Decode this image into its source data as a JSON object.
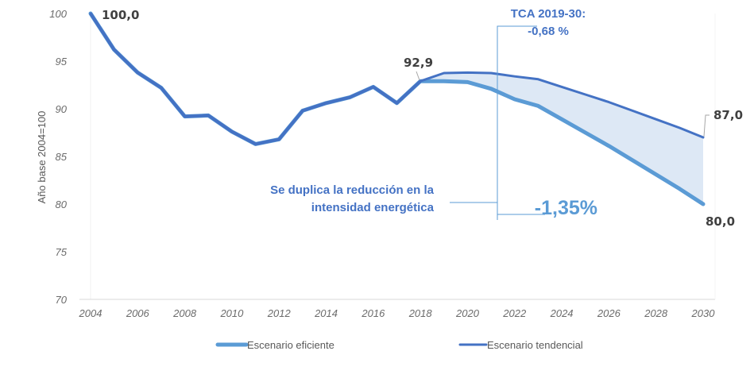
{
  "chart_data": {
    "type": "line",
    "title": "",
    "xlabel": "",
    "ylabel": "Año base 2004=100",
    "ylim": [
      70,
      100
    ],
    "xlim": [
      2004,
      2030
    ],
    "y_ticks": [
      "70",
      "75",
      "80",
      "85",
      "90",
      "95",
      "100"
    ],
    "y_tick_values": [
      70,
      75,
      80,
      85,
      90,
      95,
      100
    ],
    "x_ticks": [
      "2004",
      "2006",
      "2008",
      "2010",
      "2012",
      "2014",
      "2016",
      "2018",
      "2020",
      "2022",
      "2024",
      "2026",
      "2028",
      "2030"
    ],
    "x_tick_values": [
      2004,
      2006,
      2008,
      2010,
      2012,
      2014,
      2016,
      2018,
      2020,
      2022,
      2024,
      2026,
      2028,
      2030
    ],
    "grid": "horizontal-baseline-only",
    "legend_position": "bottom",
    "series": [
      {
        "name": "Escenario eficiente",
        "color": "#5b9bd5",
        "x": [
          2004,
          2005,
          2006,
          2007,
          2008,
          2009,
          2010,
          2011,
          2012,
          2013,
          2014,
          2015,
          2016,
          2017,
          2018,
          2019,
          2020,
          2021,
          2022,
          2023,
          2024,
          2025,
          2026,
          2027,
          2028,
          2029,
          2030
        ],
        "values": [
          100.0,
          96.2,
          93.8,
          92.2,
          89.2,
          89.3,
          87.6,
          86.3,
          86.8,
          89.8,
          90.6,
          91.2,
          92.3,
          90.6,
          92.9,
          92.9,
          92.8,
          92.1,
          91.0,
          90.3,
          88.9,
          87.5,
          86.1,
          84.6,
          83.1,
          81.6,
          80.0
        ]
      },
      {
        "name": "Escenario tendencial",
        "color": "#4472c4",
        "x": [
          2004,
          2005,
          2006,
          2007,
          2008,
          2009,
          2010,
          2011,
          2012,
          2013,
          2014,
          2015,
          2016,
          2017,
          2018,
          2019,
          2020,
          2021,
          2022,
          2023,
          2024,
          2025,
          2026,
          2027,
          2028,
          2029,
          2030
        ],
        "values": [
          100.0,
          96.2,
          93.8,
          92.2,
          89.2,
          89.3,
          87.6,
          86.3,
          86.8,
          89.8,
          90.6,
          91.2,
          92.3,
          90.6,
          92.9,
          93.75,
          93.8,
          93.75,
          93.4,
          93.1,
          92.3,
          91.5,
          90.7,
          89.8,
          88.9,
          88.0,
          87.0
        ]
      }
    ],
    "band": {
      "between": [
        "Escenario tendencial",
        "Escenario eficiente"
      ],
      "from": 2018,
      "to": 2030,
      "color": "#dde8f5"
    },
    "data_labels": [
      {
        "x": 2004,
        "y": 100.0,
        "text": "100,0"
      },
      {
        "x": 2018,
        "y": 92.9,
        "text": "92,9"
      },
      {
        "x": 2030,
        "y": 87.0,
        "text": "87,0"
      },
      {
        "x": 2030,
        "y": 80.0,
        "text": "80,0"
      }
    ],
    "annotations": {
      "tca_title": "TCA 2019-30:",
      "tca_tendencial": "-0,68 %",
      "reduction_line1": "Se duplica la reducción en la",
      "reduction_line2": "intensidad energética",
      "tca_eficiente": "-1,35%"
    }
  }
}
